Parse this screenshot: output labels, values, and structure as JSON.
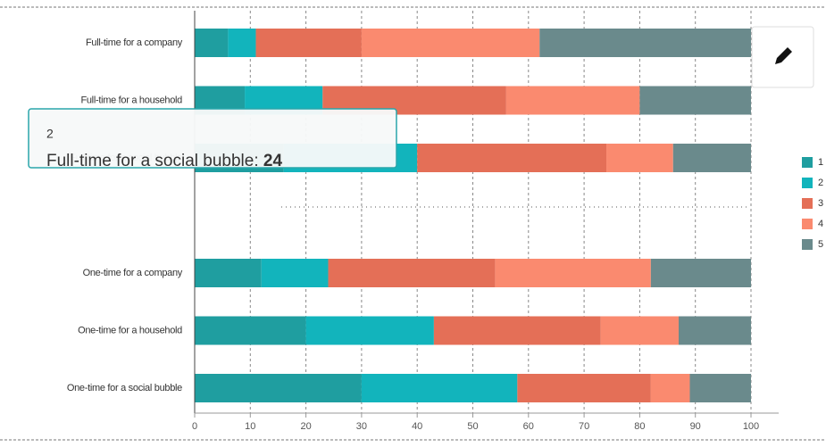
{
  "chart_data": {
    "type": "stacked_barh",
    "categories": [
      "Full-time for a company",
      "Full-time for a household",
      "Full-time for a social bubble",
      null,
      "One-time for a company",
      "One-time for a household",
      "One-time for a social bubble"
    ],
    "series": [
      {
        "name": "1",
        "color": "#1f9ea0",
        "values": [
          6,
          9,
          16,
          null,
          12,
          20,
          30
        ]
      },
      {
        "name": "2",
        "color": "#12b4bc",
        "values": [
          5,
          14,
          24,
          null,
          12,
          23,
          28
        ]
      },
      {
        "name": "3",
        "color": "#e46f57",
        "values": [
          19,
          33,
          34,
          null,
          30,
          30,
          24
        ]
      },
      {
        "name": "4",
        "color": "#fa8a6f",
        "values": [
          32,
          24,
          12,
          null,
          28,
          14,
          7
        ]
      },
      {
        "name": "5",
        "color": "#6a8a8c",
        "values": [
          38,
          20,
          14,
          null,
          18,
          13,
          11
        ]
      }
    ],
    "xlim": [
      0,
      100
    ],
    "xticks": [
      0,
      10,
      20,
      30,
      40,
      50,
      60,
      70,
      80,
      90,
      100
    ],
    "grid": true,
    "legend": "right",
    "tooltip": {
      "title": "2",
      "text": "Full-time for a social bubble:",
      "value": 24
    }
  }
}
